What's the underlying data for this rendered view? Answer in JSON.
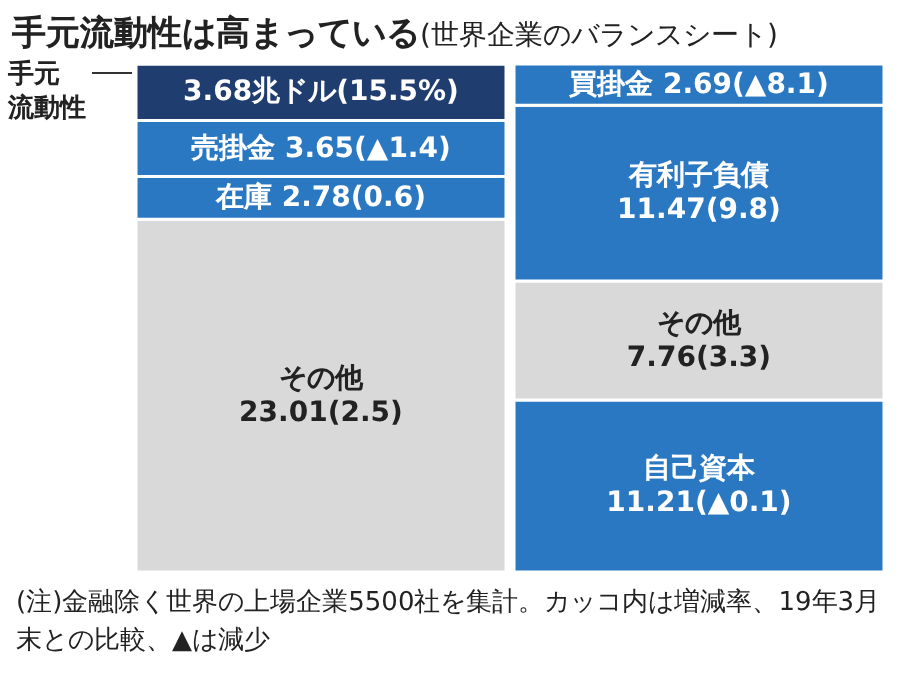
{
  "chart_data": {
    "type": "bar",
    "title": "手元流動性は高まっている",
    "subtitle": "(世界企業のバランスシート)",
    "stacked": true,
    "categories": [
      null,
      null
    ],
    "series": [
      {
        "colors": [
          "#d9d9d9",
          "#2b78c2"
        ],
        "values": [
          23.01,
          11.21
        ],
        "value_labels": [
          "その他\n23.01(2.5)",
          "自己資本\n11.21(▲0.1)"
        ]
      },
      {
        "colors": [
          "#2b78c2",
          "#d9d9d9"
        ],
        "values": [
          2.78,
          7.76
        ],
        "value_labels": [
          "在庫 2.78(0.6)",
          "その他\n7.76(3.3)"
        ]
      },
      {
        "colors": [
          "#2b78c2",
          "#2b78c2"
        ],
        "values": [
          3.65,
          11.47
        ],
        "value_labels": [
          "売掛金 3.65(▲1.4)",
          "有利子負債\n11.47(9.8)"
        ]
      },
      {
        "colors": [
          "#1f3d6e",
          "#2b78c2"
        ],
        "values": [
          3.68,
          2.69
        ],
        "value_labels": [
          "3.68兆ドル(15.5%)",
          "買掛金 2.69(▲8.1)"
        ]
      }
    ],
    "annotations": [
      "手元流動性",
      "(注)金融除く世界の上場企業5500社を集計。カッコ内は増減率、19年3月末との比較、▲は減少"
    ],
    "grid": false,
    "legend": false
  }
}
